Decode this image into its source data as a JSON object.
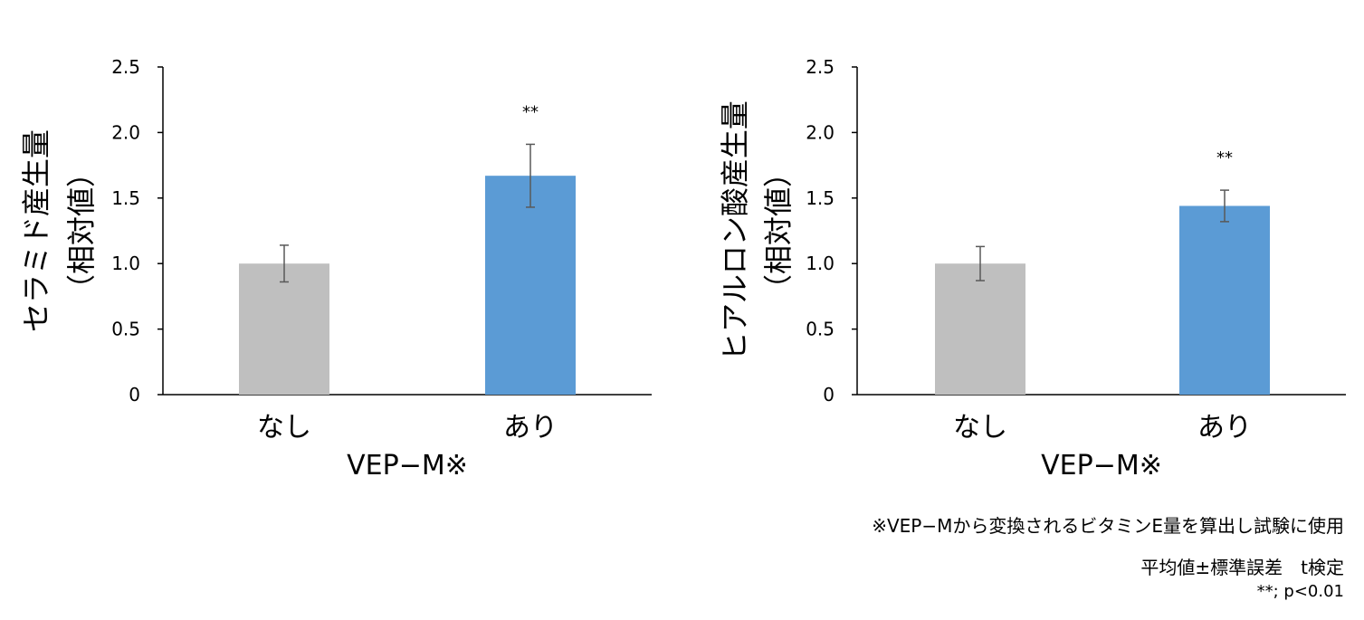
{
  "chart_data": [
    {
      "type": "bar",
      "title": "",
      "ylabel_lines": [
        "セラミド産生量",
        "（相対値）"
      ],
      "xlabel": "VEP−M※",
      "ylim": [
        0,
        2.5
      ],
      "y_ticks": [
        "0",
        "0.5",
        "1.0",
        "1.5",
        "2.0",
        "2.5"
      ],
      "categories": [
        "なし",
        "あり"
      ],
      "values": [
        1.0,
        1.67
      ],
      "errors": [
        0.14,
        0.24
      ],
      "colors": [
        "#bfbfbf",
        "#5b9bd5"
      ],
      "significance": [
        "",
        "**"
      ],
      "grid": false
    },
    {
      "type": "bar",
      "title": "",
      "ylabel_lines": [
        "ヒアルロン酸産生量",
        "（相対値）"
      ],
      "xlabel": "VEP−M※",
      "ylim": [
        0,
        2.5
      ],
      "y_ticks": [
        "0",
        "0.5",
        "1.0",
        "1.5",
        "2.0",
        "2.5"
      ],
      "categories": [
        "なし",
        "あり"
      ],
      "values": [
        1.0,
        1.44
      ],
      "errors": [
        0.13,
        0.12
      ],
      "colors": [
        "#bfbfbf",
        "#5b9bd5"
      ],
      "significance": [
        "",
        "**"
      ],
      "grid": false
    }
  ],
  "footnotes": {
    "line1": "※VEP−Mから変換されるビタミンE量を算出し試験に使用",
    "line2": "平均値±標準誤差　t検定",
    "line3": "**; p<0.01"
  }
}
